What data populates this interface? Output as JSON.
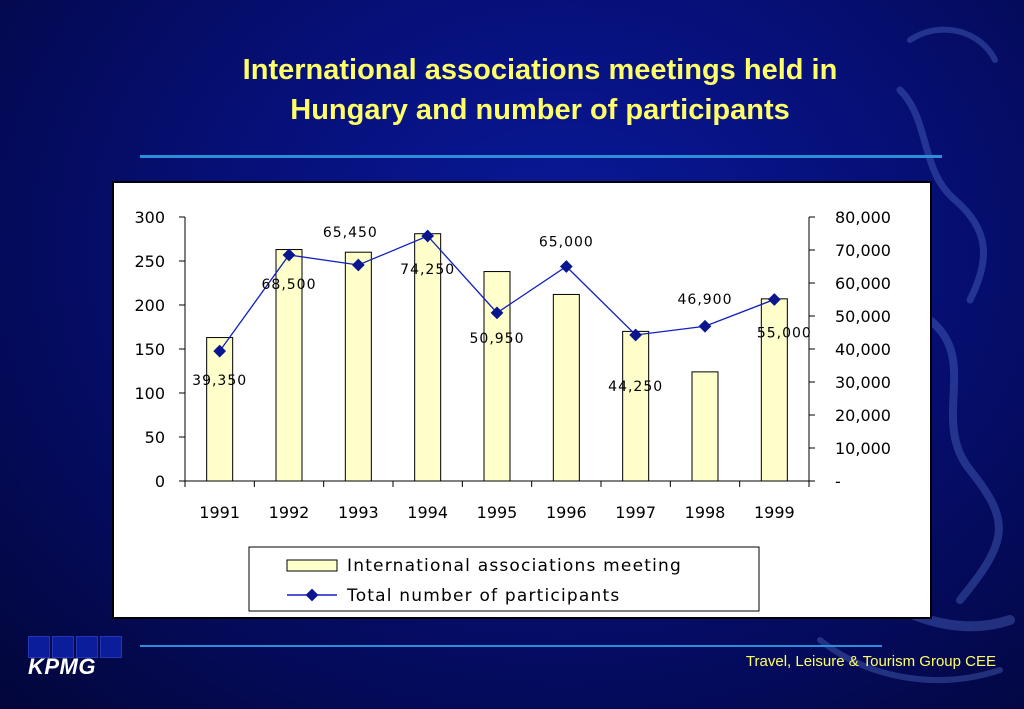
{
  "slide": {
    "title_line1": "International associations meetings held in",
    "title_line2": "Hungary and number of participants",
    "logo": "KPMG",
    "footer": "Travel, Leisure & Tourism Group CEE"
  },
  "colors": {
    "title": "#ffff66",
    "bar_fill": "#ffffcc",
    "line": "#1020c0",
    "accent_rule": "#2a8fd8"
  },
  "chart_data": {
    "type": "bar",
    "categories": [
      "1991",
      "1992",
      "1993",
      "1994",
      "1995",
      "1996",
      "1997",
      "1998",
      "1999"
    ],
    "series": [
      {
        "name": "International  associations meeting",
        "type": "bar",
        "axis": "left",
        "values": [
          163,
          263,
          260,
          281,
          238,
          212,
          170,
          124,
          207
        ]
      },
      {
        "name": "Total number of participants",
        "type": "line",
        "axis": "right",
        "values": [
          39350,
          68500,
          65450,
          74250,
          50950,
          65000,
          44250,
          46900,
          55000
        ],
        "data_labels": [
          "39,350",
          "68,500",
          "65,450",
          "74,250",
          "50,950",
          "65,000",
          "44,250",
          "46,900",
          "55,000"
        ]
      }
    ],
    "y_left": {
      "range": [
        0,
        300
      ],
      "ticks": [
        0,
        50,
        100,
        150,
        200,
        250,
        300
      ],
      "tick_labels": [
        "0",
        "50",
        "100",
        "150",
        "200",
        "250",
        "300"
      ]
    },
    "y_right": {
      "range": [
        0,
        80000
      ],
      "ticks": [
        0,
        10000,
        20000,
        30000,
        40000,
        50000,
        60000,
        70000,
        80000
      ],
      "tick_labels": [
        "-",
        "10,000",
        "20,000",
        "30,000",
        "40,000",
        "50,000",
        "60,000",
        "70,000",
        "80,000"
      ]
    },
    "grid": false,
    "legend_position": "bottom"
  }
}
